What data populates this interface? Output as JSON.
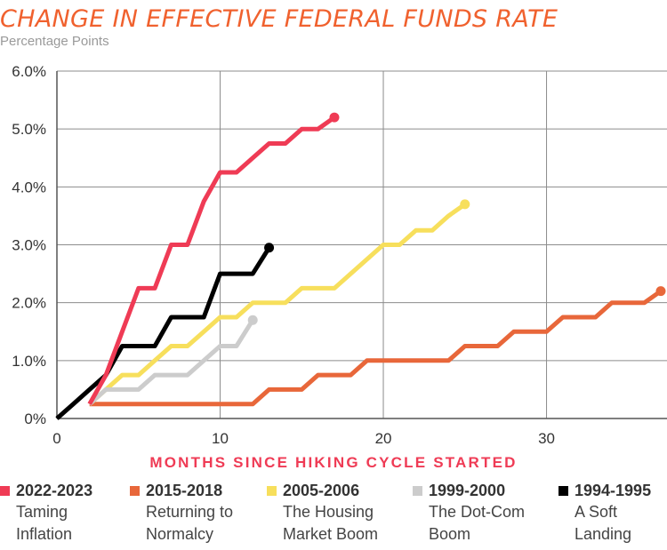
{
  "title": "CHANGE IN EFFECTIVE FEDERAL FUNDS RATE",
  "subtitle": "Percentage Points",
  "chart_data": {
    "type": "line",
    "title": "CHANGE IN EFFECTIVE FEDERAL FUNDS RATE",
    "subtitle": "Percentage Points",
    "xlabel": "MONTHS SINCE HIKING CYCLE STARTED",
    "ylabel": "",
    "xlim": [
      0,
      37
    ],
    "ylim": [
      0,
      6
    ],
    "x_ticks": [
      0,
      10,
      20,
      30
    ],
    "y_ticks": [
      0,
      1,
      2,
      3,
      4,
      5,
      6
    ],
    "y_tick_labels": [
      "0%",
      "1.0%",
      "2.0%",
      "3.0%",
      "4.0%",
      "5.0%",
      "6.0%"
    ],
    "grid": true,
    "series": [
      {
        "name": "2015-2018",
        "color": "#e8673a",
        "points": [
          [
            2,
            0.25
          ],
          [
            3,
            0.25
          ],
          [
            4,
            0.25
          ],
          [
            5,
            0.25
          ],
          [
            6,
            0.25
          ],
          [
            7,
            0.25
          ],
          [
            8,
            0.25
          ],
          [
            9,
            0.25
          ],
          [
            10,
            0.25
          ],
          [
            11,
            0.25
          ],
          [
            12,
            0.25
          ],
          [
            13,
            0.5
          ],
          [
            14,
            0.5
          ],
          [
            15,
            0.5
          ],
          [
            16,
            0.75
          ],
          [
            17,
            0.75
          ],
          [
            18,
            0.75
          ],
          [
            19,
            1.0
          ],
          [
            20,
            1.0
          ],
          [
            21,
            1.0
          ],
          [
            22,
            1.0
          ],
          [
            23,
            1.0
          ],
          [
            24,
            1.0
          ],
          [
            25,
            1.25
          ],
          [
            26,
            1.25
          ],
          [
            27,
            1.25
          ],
          [
            28,
            1.5
          ],
          [
            29,
            1.5
          ],
          [
            30,
            1.5
          ],
          [
            31,
            1.75
          ],
          [
            32,
            1.75
          ],
          [
            33,
            1.75
          ],
          [
            34,
            2.0
          ],
          [
            35,
            2.0
          ],
          [
            36,
            2.0
          ],
          [
            37,
            2.2
          ]
        ]
      },
      {
        "name": "2005-2006",
        "color": "#f7df5c",
        "points": [
          [
            2,
            0.25
          ],
          [
            3,
            0.5
          ],
          [
            4,
            0.75
          ],
          [
            5,
            0.75
          ],
          [
            6,
            1.0
          ],
          [
            7,
            1.25
          ],
          [
            8,
            1.25
          ],
          [
            9,
            1.5
          ],
          [
            10,
            1.75
          ],
          [
            11,
            1.75
          ],
          [
            12,
            2.0
          ],
          [
            13,
            2.0
          ],
          [
            14,
            2.0
          ],
          [
            15,
            2.25
          ],
          [
            16,
            2.25
          ],
          [
            17,
            2.25
          ],
          [
            18,
            2.5
          ],
          [
            19,
            2.75
          ],
          [
            20,
            3.0
          ],
          [
            21,
            3.0
          ],
          [
            22,
            3.25
          ],
          [
            23,
            3.25
          ],
          [
            24,
            3.5
          ],
          [
            25,
            3.7
          ]
        ]
      },
      {
        "name": "1999-2000",
        "color": "#cccccc",
        "points": [
          [
            2,
            0.25
          ],
          [
            3,
            0.5
          ],
          [
            4,
            0.5
          ],
          [
            5,
            0.5
          ],
          [
            6,
            0.75
          ],
          [
            7,
            0.75
          ],
          [
            8,
            0.75
          ],
          [
            9,
            1.0
          ],
          [
            10,
            1.25
          ],
          [
            11,
            1.25
          ],
          [
            12,
            1.7
          ]
        ]
      },
      {
        "name": "1994-1995",
        "color": "#000000",
        "points": [
          [
            0,
            0
          ],
          [
            1,
            0.25
          ],
          [
            2,
            0.5
          ],
          [
            3,
            0.75
          ],
          [
            4,
            1.25
          ],
          [
            5,
            1.25
          ],
          [
            6,
            1.25
          ],
          [
            7,
            1.75
          ],
          [
            8,
            1.75
          ],
          [
            9,
            1.75
          ],
          [
            10,
            2.5
          ],
          [
            11,
            2.5
          ],
          [
            12,
            2.5
          ],
          [
            13,
            2.95
          ]
        ]
      },
      {
        "name": "2022-2023",
        "color": "#ef3b55",
        "points": [
          [
            2,
            0.25
          ],
          [
            3,
            0.75
          ],
          [
            4,
            1.5
          ],
          [
            5,
            2.25
          ],
          [
            6,
            2.25
          ],
          [
            7,
            3.0
          ],
          [
            8,
            3.0
          ],
          [
            9,
            3.75
          ],
          [
            10,
            4.25
          ],
          [
            11,
            4.25
          ],
          [
            12,
            4.5
          ],
          [
            13,
            4.75
          ],
          [
            14,
            4.75
          ],
          [
            15,
            5.0
          ],
          [
            16,
            5.0
          ],
          [
            17,
            5.2
          ]
        ]
      }
    ]
  },
  "legend": [
    {
      "period": "2022-2023",
      "desc1": "Taming",
      "desc2": "Inflation",
      "color": "#ef3b55"
    },
    {
      "period": "2015-2018",
      "desc1": "Returning to",
      "desc2": "Normalcy",
      "color": "#e8673a"
    },
    {
      "period": "2005-2006",
      "desc1": "The Housing",
      "desc2": "Market Boom",
      "color": "#f7df5c"
    },
    {
      "period": "1999-2000",
      "desc1": "The Dot-Com",
      "desc2": "Boom",
      "color": "#cccccc"
    },
    {
      "period": "1994-1995",
      "desc1": "A Soft",
      "desc2": "Landing",
      "color": "#000000"
    }
  ]
}
